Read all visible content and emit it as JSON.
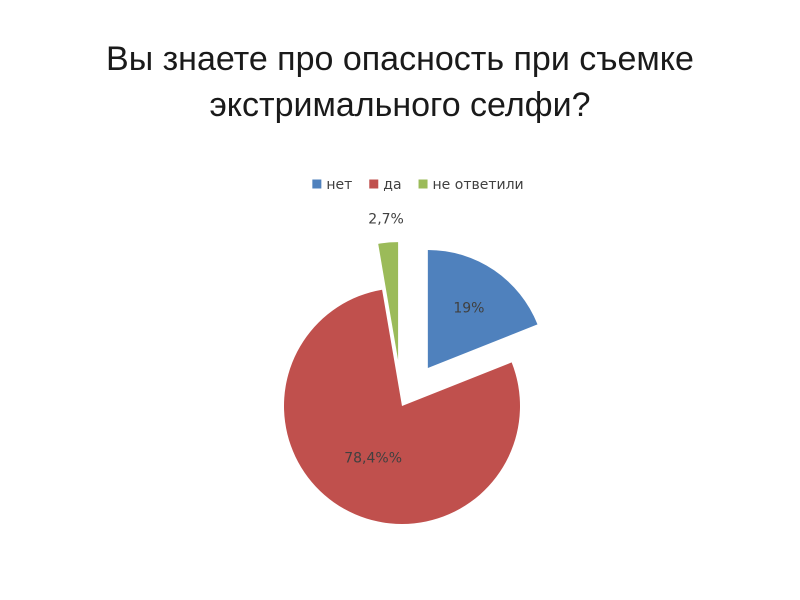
{
  "slide": {
    "title_line1": "Вы знаете про опасность при съемке",
    "title_line2": "экстримального селфи?"
  },
  "chart_data": {
    "type": "pie",
    "title": "Вы знаете про опасность при съемке экстримального селфи?",
    "legend_position": "top",
    "slices": [
      {
        "name": "нет",
        "value": 19.0,
        "label": "19%",
        "color": "#4f81bd",
        "exploded": true
      },
      {
        "name": "да",
        "value": 78.4,
        "label": "78,4%%",
        "color": "#c0504d",
        "exploded": false
      },
      {
        "name": "не ответили",
        "value": 2.7,
        "label": "2,7%",
        "color": "#9bbb59",
        "exploded": true
      }
    ]
  }
}
